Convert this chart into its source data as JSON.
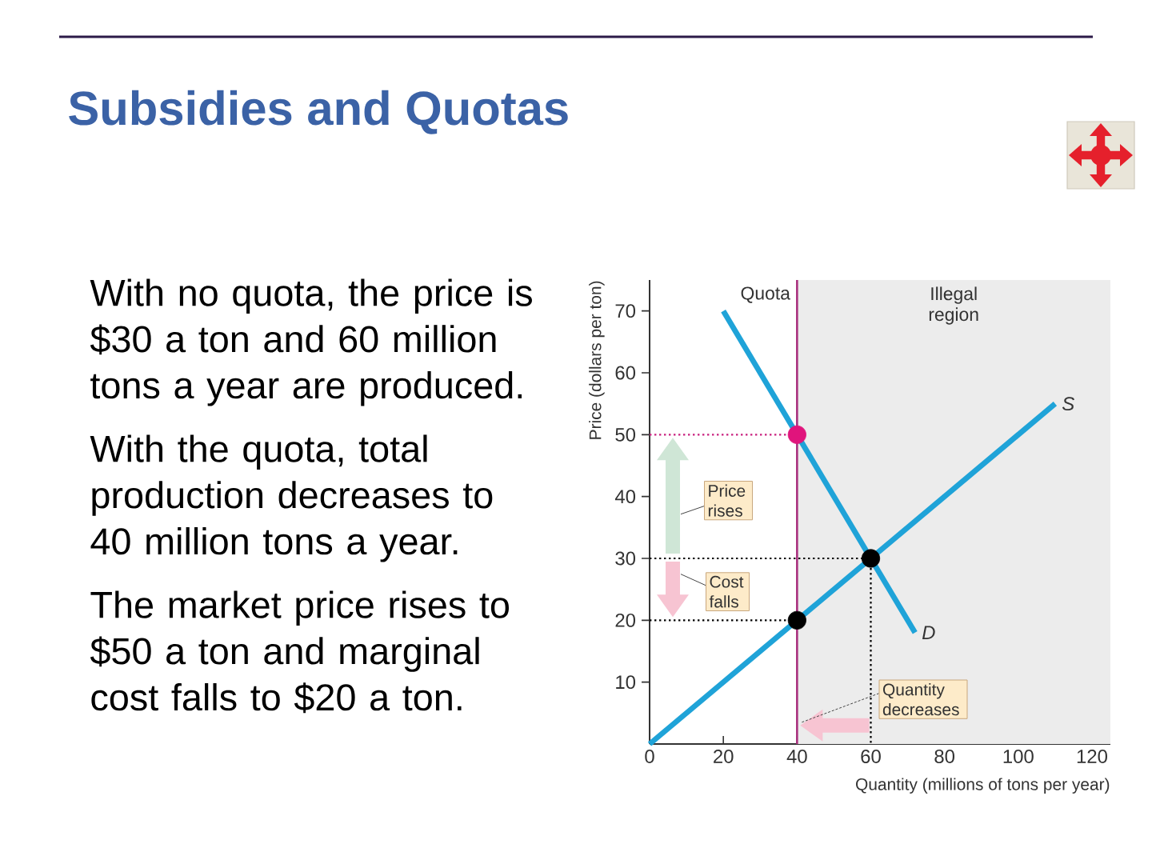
{
  "chart_data": {
    "type": "line",
    "title": "Subsidies and Quotas",
    "xlabel": "Quantity (millions of tons per year)",
    "ylabel": "Price (dollars per ton)",
    "xlim": [
      0,
      125
    ],
    "ylim": [
      0,
      75
    ],
    "xticks": [
      0,
      20,
      40,
      60,
      80,
      100,
      120
    ],
    "yticks": [
      10,
      20,
      30,
      40,
      50,
      60,
      70
    ],
    "series": [
      {
        "name": "S",
        "color": "#1fa3d8",
        "x": [
          0,
          110
        ],
        "values": [
          0,
          55
        ]
      },
      {
        "name": "D",
        "color": "#1fa3d8",
        "x": [
          20,
          72
        ],
        "values": [
          70,
          18
        ]
      },
      {
        "type": "line",
        "line_style": "dotted",
        "color": "#c8207e",
        "x": [
          0,
          40
        ],
        "values": [
          50,
          50
        ]
      },
      {
        "type": "line",
        "line_style": "dotted",
        "color": "#000000",
        "x": [
          0,
          60
        ],
        "values": [
          30,
          30
        ]
      },
      {
        "type": "line",
        "line_style": "dotted",
        "color": "#000000",
        "x": [
          0,
          40
        ],
        "values": [
          20,
          20
        ]
      },
      {
        "type": "line",
        "line_style": "dotted",
        "color": "#000000",
        "x": [
          60,
          60
        ],
        "values": [
          30,
          0
        ]
      },
      {
        "type": "scatter",
        "marker": "circle",
        "color": "#e0147c",
        "x": [
          40
        ],
        "values": [
          50
        ]
      },
      {
        "type": "scatter",
        "marker": "circle",
        "color": "#000000",
        "x": [
          40,
          60
        ],
        "values": [
          20,
          30
        ]
      }
    ],
    "ref_lines": [
      {
        "axis": "x",
        "value": 40,
        "label": "Quota",
        "color": "#a8307e"
      }
    ],
    "bands": [
      {
        "axis": "x",
        "from": 40,
        "to": 125,
        "label": "Illegal region",
        "color": "#ececec"
      }
    ],
    "annotations": [
      "With no quota, the price is $30 a ton and 60 million tons a year are produced.",
      "With the quota, total production decreases to 40 million tons a year.",
      "The market price rises to $50 a ton and marginal cost falls to $20 a ton.",
      "Price rises",
      "Cost falls",
      {
        "text": "Quantity decreases",
        "x": 40,
        "y": 3
      }
    ]
  }
}
